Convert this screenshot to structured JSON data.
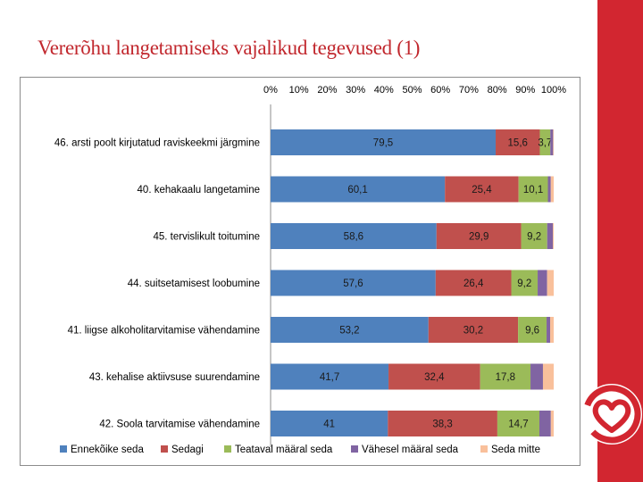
{
  "slide": {
    "title": "Vererõhu langetamiseks vajalikud tegevused (1)"
  },
  "colors": {
    "brand_red": "#d22630",
    "title_red": "#c1272d",
    "series": [
      "#4f81bd",
      "#c0504d",
      "#9bbb59",
      "#8064a2",
      "#f9c09b"
    ]
  },
  "logo": {
    "icon": "heart-logo-icon"
  },
  "chart_data": {
    "type": "bar",
    "orientation": "horizontal",
    "stacked": "percent",
    "title": "",
    "xlim": [
      0,
      100
    ],
    "x_ticks": [
      "0%",
      "10%",
      "20%",
      "30%",
      "40%",
      "50%",
      "60%",
      "70%",
      "80%",
      "90%",
      "100%"
    ],
    "x_axis_position": "top",
    "legend_position": "bottom",
    "categories": [
      "46. arsti poolt kirjutatud raviskeekmi järgmine",
      "40. kehakaalu langetamine",
      "45. tervislikult toitumine",
      "44. suitsetamisest loobumine",
      "41. liigse alkoholitarvitamise vähendamine",
      "43. kehalise aktiivsuse suurendamine",
      "42. Soola tarvitamise vähendamine"
    ],
    "series": [
      {
        "name": "Ennekõike seda",
        "values": [
          79.5,
          60.1,
          58.6,
          57.6,
          53.2,
          41.7,
          41
        ],
        "labels": [
          "79,5",
          "60,1",
          "58,6",
          "57,6",
          "53,2",
          "41,7",
          "41"
        ]
      },
      {
        "name": "Sedagi",
        "values": [
          15.6,
          25.4,
          29.9,
          26.4,
          30.2,
          32.4,
          38.3
        ],
        "labels": [
          "15,6",
          "25,4",
          "29,9",
          "26,4",
          "30,2",
          "32,4",
          "38,3"
        ]
      },
      {
        "name": "Teataval määral seda",
        "values": [
          3.7,
          10.1,
          9.2,
          9.2,
          9.6,
          17.8,
          14.7
        ],
        "labels": [
          "3,7",
          "10,1",
          "9,2",
          "9,2",
          "9,6",
          "17,8",
          "14,7"
        ]
      },
      {
        "name": "Vähesel määral seda",
        "values": [
          1.0,
          1.0,
          2.0,
          3.3,
          1.2,
          4.4,
          4.0
        ],
        "labels": [
          "",
          "",
          "",
          "",
          "",
          "",
          ""
        ]
      },
      {
        "name": "Seda mitte",
        "values": [
          0.2,
          1.0,
          0.3,
          2.3,
          1.2,
          3.8,
          1.0
        ],
        "labels": [
          "",
          "",
          "",
          "",
          "",
          "",
          ""
        ]
      }
    ]
  }
}
